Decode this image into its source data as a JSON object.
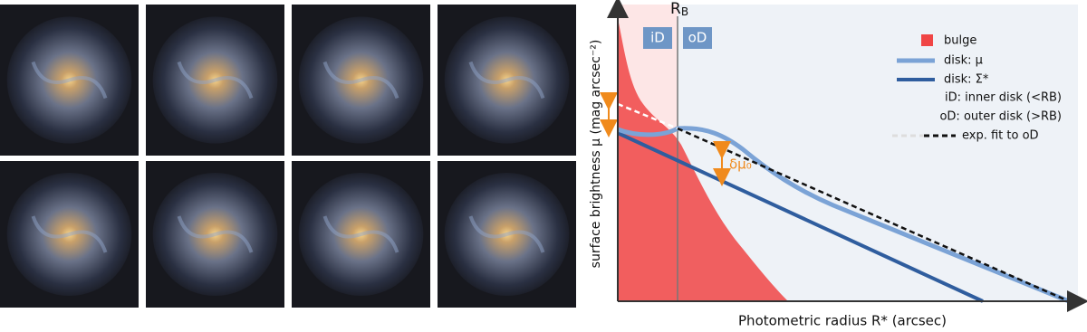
{
  "diagram": {
    "rb_label": {
      "main": "R",
      "sub": "B"
    },
    "region_labels": [
      "iD",
      "oD"
    ],
    "legend": [
      "bulge",
      "disk: μ",
      "disk: Σ*",
      "iD: inner disk (<RB)",
      "oD: outer disk (>RB)",
      "exp. fit to oD"
    ],
    "delta_label": "δμ₀",
    "y_axis_label": "surface brightness μ (mag arcsec⁻²)",
    "x_axis_label": "Photometric radius R* (arcsec)"
  }
}
